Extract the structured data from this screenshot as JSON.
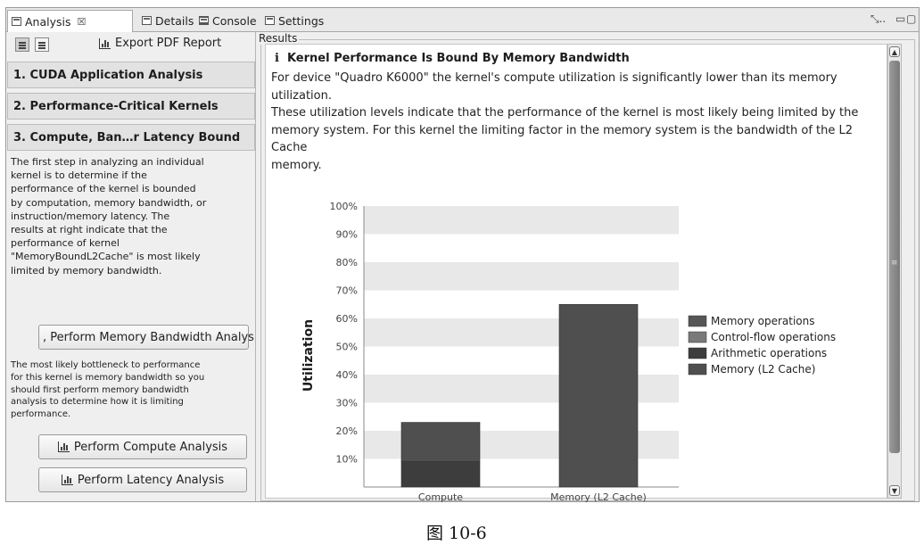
{
  "tabs": [
    {
      "label": "Analysis",
      "close": "☒"
    },
    {
      "label": "Details"
    },
    {
      "label": "Console"
    },
    {
      "label": "Settings"
    }
  ],
  "window_controls": {
    "minimize": "▭",
    "maximize": "▢",
    "overflow": "⤡.."
  },
  "left_panel": {
    "export_label": "Export PDF Report",
    "sections": [
      "1. CUDA Application Analysis",
      "2. Performance-Critical Kernels",
      "3. Compute, Ban…r Latency Bound"
    ],
    "description_lines": [
      "The first step in analyzing an individual",
      "kernel is to determine if the",
      "performance of the kernel is bounded",
      "by computation, memory bandwidth, or",
      "instruction/memory latency.  The",
      "results at right indicate that the",
      "performance of kernel",
      "\"MemoryBoundL2Cache\" is most likely",
      "limited by memory bandwidth."
    ],
    "memory_button": ", Perform Memory Bandwidth Analys",
    "bottleneck_lines": [
      "The most likely bottleneck to performance",
      "for this kernel is memory bandwidth so you",
      "should first perform memory bandwidth",
      "analysis to determine how it is limiting",
      "performance."
    ],
    "compute_button": "Perform Compute Analysis",
    "latency_button": "Perform Latency Analysis"
  },
  "results": {
    "group_label": "Results",
    "info_icon": "i",
    "title": "Kernel Performance Is Bound By Memory Bandwidth",
    "body_lines": [
      "For device \"Quadro K6000\" the kernel's compute utilization is significantly lower than its memory utilization.",
      "These utilization levels indicate that the performance of the kernel is most likely being limited by the",
      "memory system. For this kernel the limiting factor in the memory system is the bandwidth of the L2 Cache",
      "memory."
    ]
  },
  "chart_data": {
    "type": "bar",
    "ylabel": "Utilization",
    "xlabel": "",
    "title": "",
    "ylim": [
      0,
      100
    ],
    "yticks": [
      "10%",
      "20%",
      "30%",
      "40%",
      "50%",
      "60%",
      "70%",
      "80%",
      "90%",
      "100%"
    ],
    "categories": [
      "Compute",
      "Memory (L2 Cache)"
    ],
    "series": [
      {
        "name": "Memory operations",
        "color": "#565656",
        "values": [
          0,
          0
        ]
      },
      {
        "name": "Control-flow operations",
        "color": "#7a7a7a",
        "values": [
          0,
          0
        ]
      },
      {
        "name": "Arithmetic operations",
        "color": "#3d3d3d",
        "values": [
          9,
          0
        ]
      },
      {
        "name": "Memory (L2 Cache)",
        "color": "#4f4f4f",
        "values": [
          14,
          65
        ]
      }
    ],
    "compute_total": 23,
    "legend_position": "right",
    "grid": "horizontal bands"
  },
  "figure_caption": "图   10-6"
}
